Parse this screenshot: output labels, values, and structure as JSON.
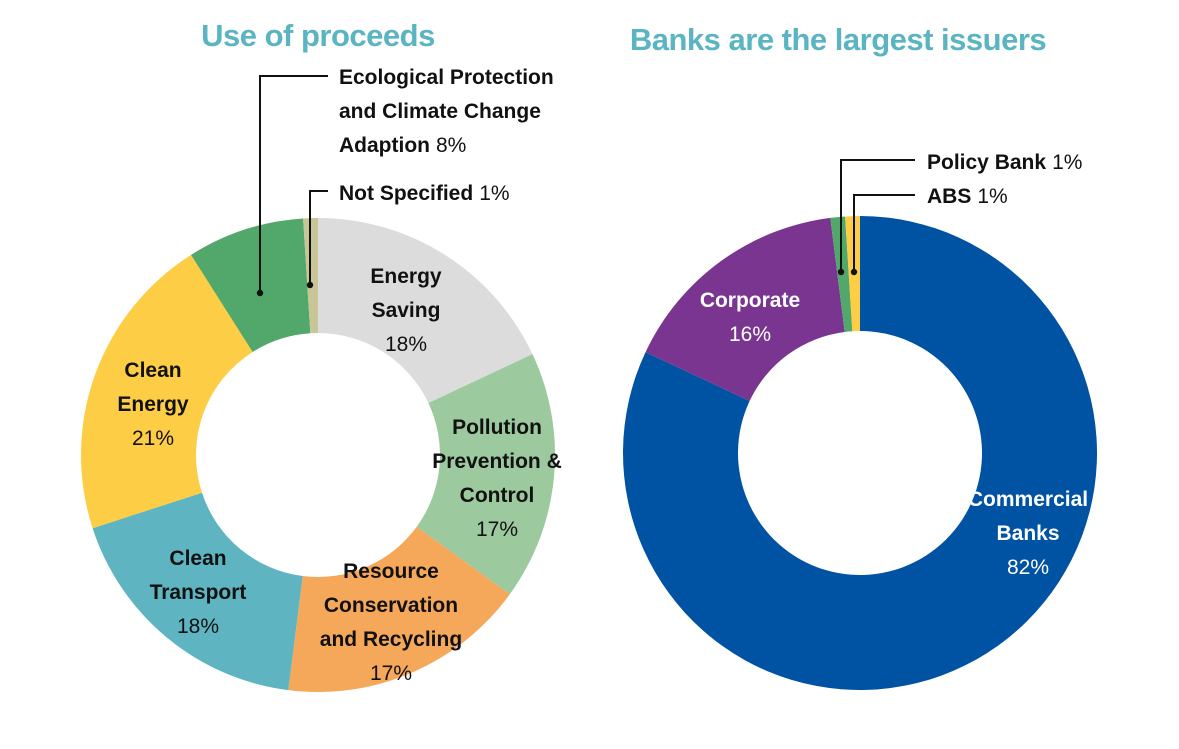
{
  "colors": {
    "title": "#5ab4c2",
    "text_dark": "#111111",
    "text_light": "#ffffff"
  },
  "chart_data": [
    {
      "type": "pie",
      "donut": true,
      "title": "Use of proceeds",
      "slices": [
        {
          "name": "Energy Saving",
          "name_lines": [
            "Energy",
            "Saving"
          ],
          "value": 18,
          "value_label": "18%",
          "color": "#dcdcdc"
        },
        {
          "name": "Pollution Prevention & Control",
          "name_lines": [
            "Pollution",
            "Prevention &",
            "Control"
          ],
          "value": 17,
          "value_label": "17%",
          "color": "#9dc99e"
        },
        {
          "name": "Resource Conservation and Recycling",
          "name_lines": [
            "Resource",
            "Conservation",
            "and Recycling"
          ],
          "value": 17,
          "value_label": "17%",
          "color": "#f5a85a"
        },
        {
          "name": "Clean Transport",
          "name_lines": [
            "Clean",
            "Transport"
          ],
          "value": 18,
          "value_label": "18%",
          "color": "#5eb5c1"
        },
        {
          "name": "Clean Energy",
          "name_lines": [
            "Clean",
            "Energy"
          ],
          "value": 21,
          "value_label": "21%",
          "color": "#fdcd45"
        },
        {
          "name": "Ecological Protection and Climate Change Adaption",
          "name_lines": [
            "Ecological Protection",
            "and Climate Change",
            "Adaption"
          ],
          "value": 8,
          "value_label": "8%",
          "color": "#52a86a"
        },
        {
          "name": "Not Specified",
          "name_lines": [
            "Not Specified"
          ],
          "value": 1,
          "value_label": "1%",
          "color": "#c8c596"
        }
      ]
    },
    {
      "type": "pie",
      "donut": true,
      "title": "Banks are the largest issuers",
      "slices": [
        {
          "name": "Commercial Banks",
          "name_lines": [
            "Commercial",
            "Banks"
          ],
          "value": 82,
          "value_label": "82%",
          "color": "#0052a2"
        },
        {
          "name": "Corporate",
          "name_lines": [
            "Corporate"
          ],
          "value": 16,
          "value_label": "16%",
          "color": "#7a3590"
        },
        {
          "name": "Policy Bank",
          "name_lines": [
            "Policy Bank"
          ],
          "value": 1,
          "value_label": "1%",
          "color": "#52a86a"
        },
        {
          "name": "ABS",
          "name_lines": [
            "ABS"
          ],
          "value": 1,
          "value_label": "1%",
          "color": "#fdcd45"
        }
      ]
    }
  ]
}
